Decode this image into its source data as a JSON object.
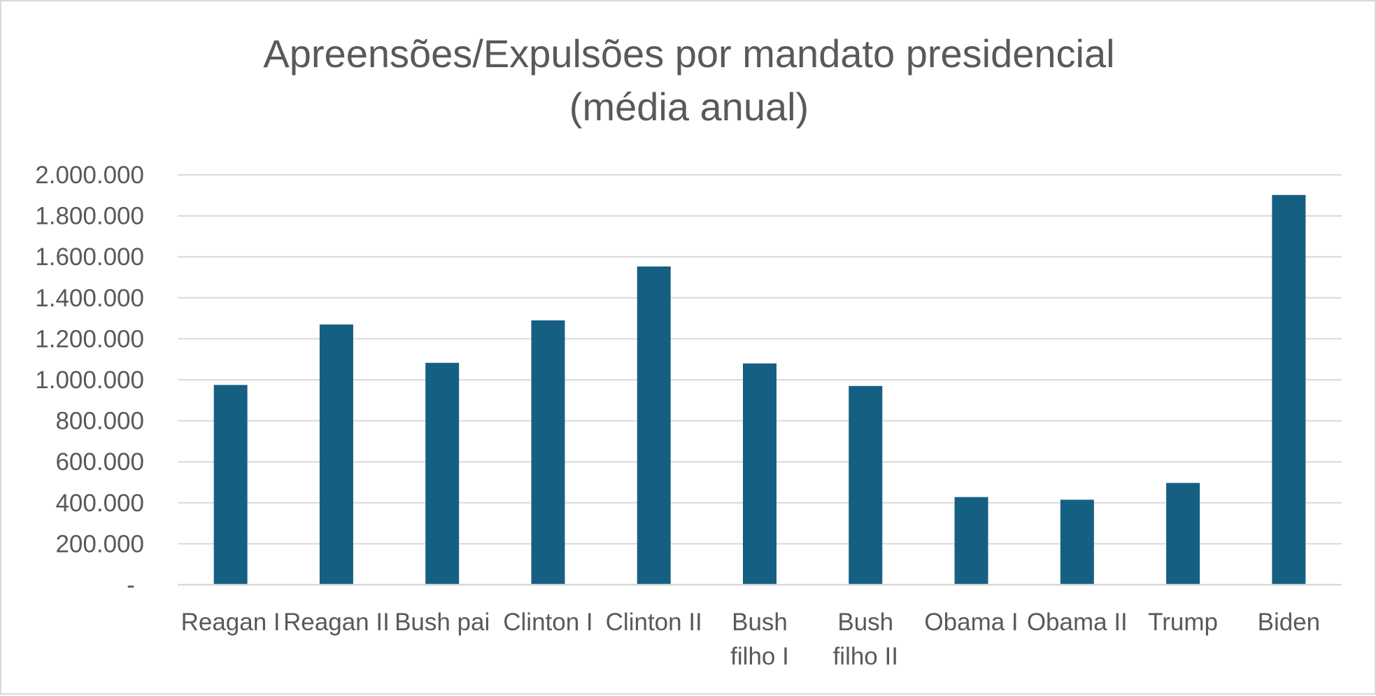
{
  "chart_data": {
    "type": "bar",
    "title": [
      "Apreensões/Expulsões por mandato presidencial",
      "(média anual)"
    ],
    "categories": [
      [
        "Reagan I"
      ],
      [
        "Reagan II"
      ],
      [
        "Bush pai"
      ],
      [
        "Clinton I"
      ],
      [
        "Clinton II"
      ],
      [
        "Bush",
        "filho I"
      ],
      [
        "Bush",
        "filho II"
      ],
      [
        "Obama I"
      ],
      [
        "Obama II"
      ],
      [
        "Trump"
      ],
      [
        "Biden"
      ]
    ],
    "values": [
      975000,
      1270000,
      1083000,
      1290000,
      1553000,
      1080000,
      970000,
      428000,
      415000,
      497000,
      1902000
    ],
    "ylim": [
      0,
      2000000
    ],
    "yticks": [
      0,
      200000,
      400000,
      600000,
      800000,
      1000000,
      1200000,
      1400000,
      1600000,
      1800000,
      2000000
    ],
    "ytick_labels": [
      "-",
      "200.000",
      "400.000",
      "600.000",
      "800.000",
      "1.000.000",
      "1.200.000",
      "1.400.000",
      "1.600.000",
      "1.800.000",
      "2.000.000"
    ],
    "xlabel": "",
    "ylabel": "",
    "grid": true,
    "legend": "none",
    "bar_color": "#156082"
  }
}
